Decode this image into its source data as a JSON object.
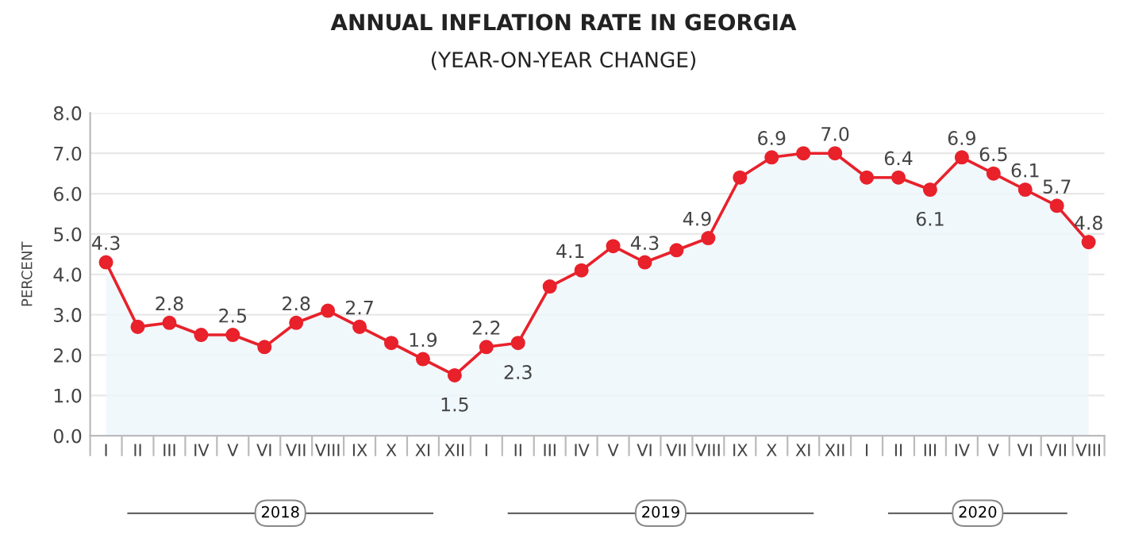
{
  "chart_data": {
    "type": "area",
    "title": "ANNUAL INFLATION RATE IN GEORGIA",
    "subtitle": "(YEAR-ON-YEAR CHANGE)",
    "ylabel": "PERCENT",
    "categories": [
      "I",
      "II",
      "III",
      "IV",
      "V",
      "VI",
      "VII",
      "VIII",
      "IX",
      "X",
      "XI",
      "XII",
      "I",
      "II",
      "III",
      "IV",
      "V",
      "VI",
      "VII",
      "VIII",
      "IX",
      "X",
      "XI",
      "XII",
      "I",
      "II",
      "III",
      "IV",
      "V",
      "VI",
      "VII",
      "VIII"
    ],
    "series": [
      {
        "color": "#e8212b",
        "values": [
          4.3,
          2.7,
          2.8,
          2.5,
          2.5,
          2.2,
          2.8,
          3.1,
          2.7,
          2.3,
          1.9,
          1.5,
          2.2,
          2.3,
          3.7,
          4.1,
          4.7,
          4.3,
          4.6,
          4.9,
          6.4,
          6.9,
          7.0,
          7.0,
          6.4,
          6.4,
          6.1,
          6.9,
          6.5,
          6.1,
          5.7,
          4.8
        ],
        "value_labels": [
          "4.3",
          null,
          "2.8",
          null,
          "2.5",
          null,
          "2.8",
          null,
          "2.7",
          null,
          "1.9",
          "1.5",
          "2.2",
          "2.3",
          null,
          "4.1",
          null,
          "4.3",
          null,
          "4.9",
          null,
          "6.9",
          null,
          "7.0",
          null,
          "6.4",
          "6.1",
          "6.9",
          "6.5",
          "6.1",
          "5.7",
          "4.8"
        ]
      }
    ],
    "annotations": [
      "2018",
      "2019",
      "2020"
    ],
    "ylim": [
      0,
      8
    ],
    "yticks": [
      {
        "value": 0,
        "label": "0.0"
      },
      {
        "value": 1,
        "label": "1.0"
      },
      {
        "value": 2,
        "label": "2.0"
      },
      {
        "value": 3,
        "label": "3.0"
      },
      {
        "value": 4,
        "label": "4.0"
      },
      {
        "value": 5,
        "label": "5.0"
      },
      {
        "value": 6,
        "label": "6.0"
      },
      {
        "value": 7,
        "label": "7.0"
      },
      {
        "value": 8,
        "label": "8.0"
      }
    ],
    "grid": "y",
    "marker": "circle",
    "line_style": "solid",
    "legend": false
  }
}
